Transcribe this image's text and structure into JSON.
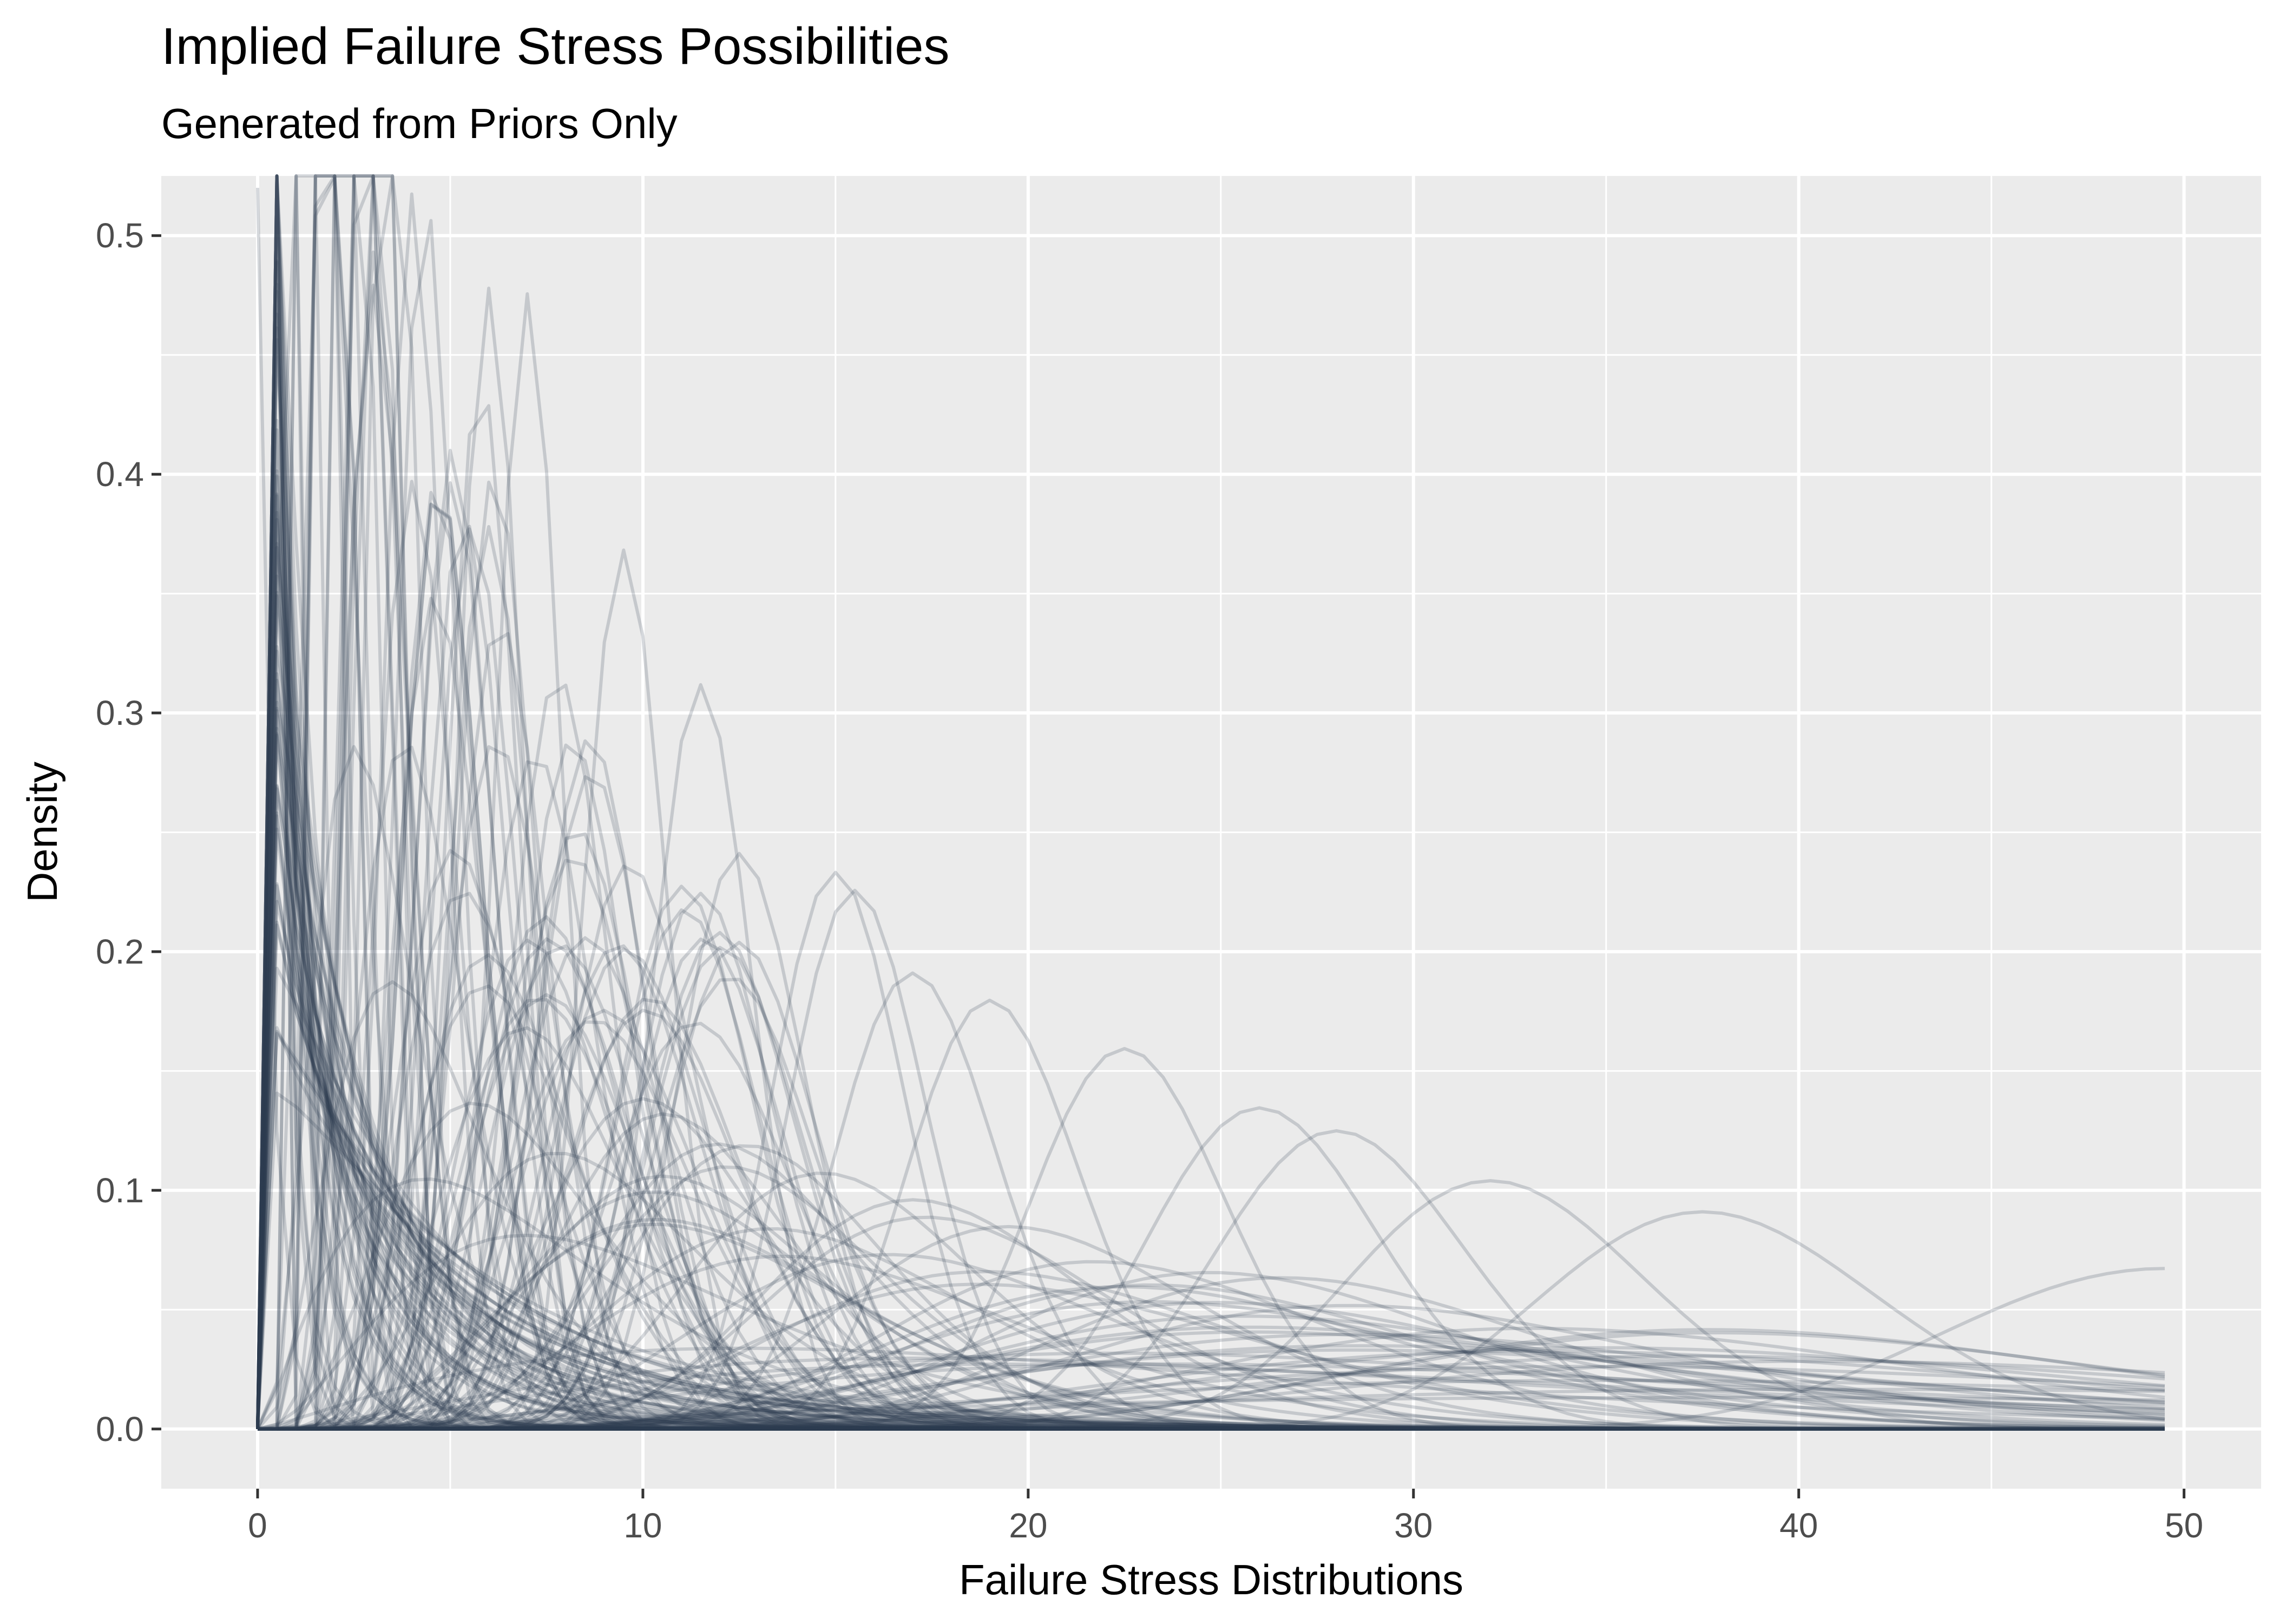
{
  "chart_data": {
    "type": "line",
    "title": "Implied Failure Stress Possibilities",
    "subtitle": "Generated from Priors Only",
    "xlabel": "Failure Stress Distributions",
    "ylabel": "Density",
    "xlim": [
      -2.5,
      52.0
    ],
    "ylim": [
      -0.025,
      0.525
    ],
    "xticks": [
      0,
      10,
      20,
      30,
      40,
      50
    ],
    "xtick_labels": [
      "0",
      "10",
      "20",
      "30",
      "40",
      "50"
    ],
    "yticks": [
      0.0,
      0.1,
      0.2,
      0.3,
      0.4,
      0.5
    ],
    "ytick_labels": [
      "0.0",
      "0.1",
      "0.2",
      "0.3",
      "0.4",
      "0.5"
    ],
    "grid": true,
    "legend": "none",
    "x_range": [
      0,
      49.5
    ],
    "line_color": "#2c3e50",
    "line_opacity": 0.2,
    "panel_background": "#ebebeb",
    "grid_color": "#ffffff",
    "series_count": 180,
    "sample_series": [
      {
        "peak_x": 0.0,
        "peak_y": 0.52
      },
      {
        "peak_x": 3.0,
        "peak_y": 0.48
      },
      {
        "peak_x": 6.0,
        "peak_y": 0.48
      },
      {
        "peak_x": 7.0,
        "peak_y": 0.47
      },
      {
        "peak_x": 9.5,
        "peak_y": 0.37
      },
      {
        "peak_x": 11.5,
        "peak_y": 0.31
      },
      {
        "peak_x": 12.5,
        "peak_y": 0.24
      },
      {
        "peak_x": 15.0,
        "peak_y": 0.235
      },
      {
        "peak_x": 15.5,
        "peak_y": 0.225
      },
      {
        "peak_x": 17.0,
        "peak_y": 0.19
      },
      {
        "peak_x": 19.0,
        "peak_y": 0.18
      },
      {
        "peak_x": 22.5,
        "peak_y": 0.16
      },
      {
        "peak_x": 26.0,
        "peak_y": 0.135
      },
      {
        "peak_x": 28.0,
        "peak_y": 0.125
      },
      {
        "peak_x": 32.0,
        "peak_y": 0.105
      },
      {
        "peak_x": 37.5,
        "peak_y": 0.092
      },
      {
        "peak_x": 49.5,
        "peak_y": 0.067
      }
    ]
  }
}
